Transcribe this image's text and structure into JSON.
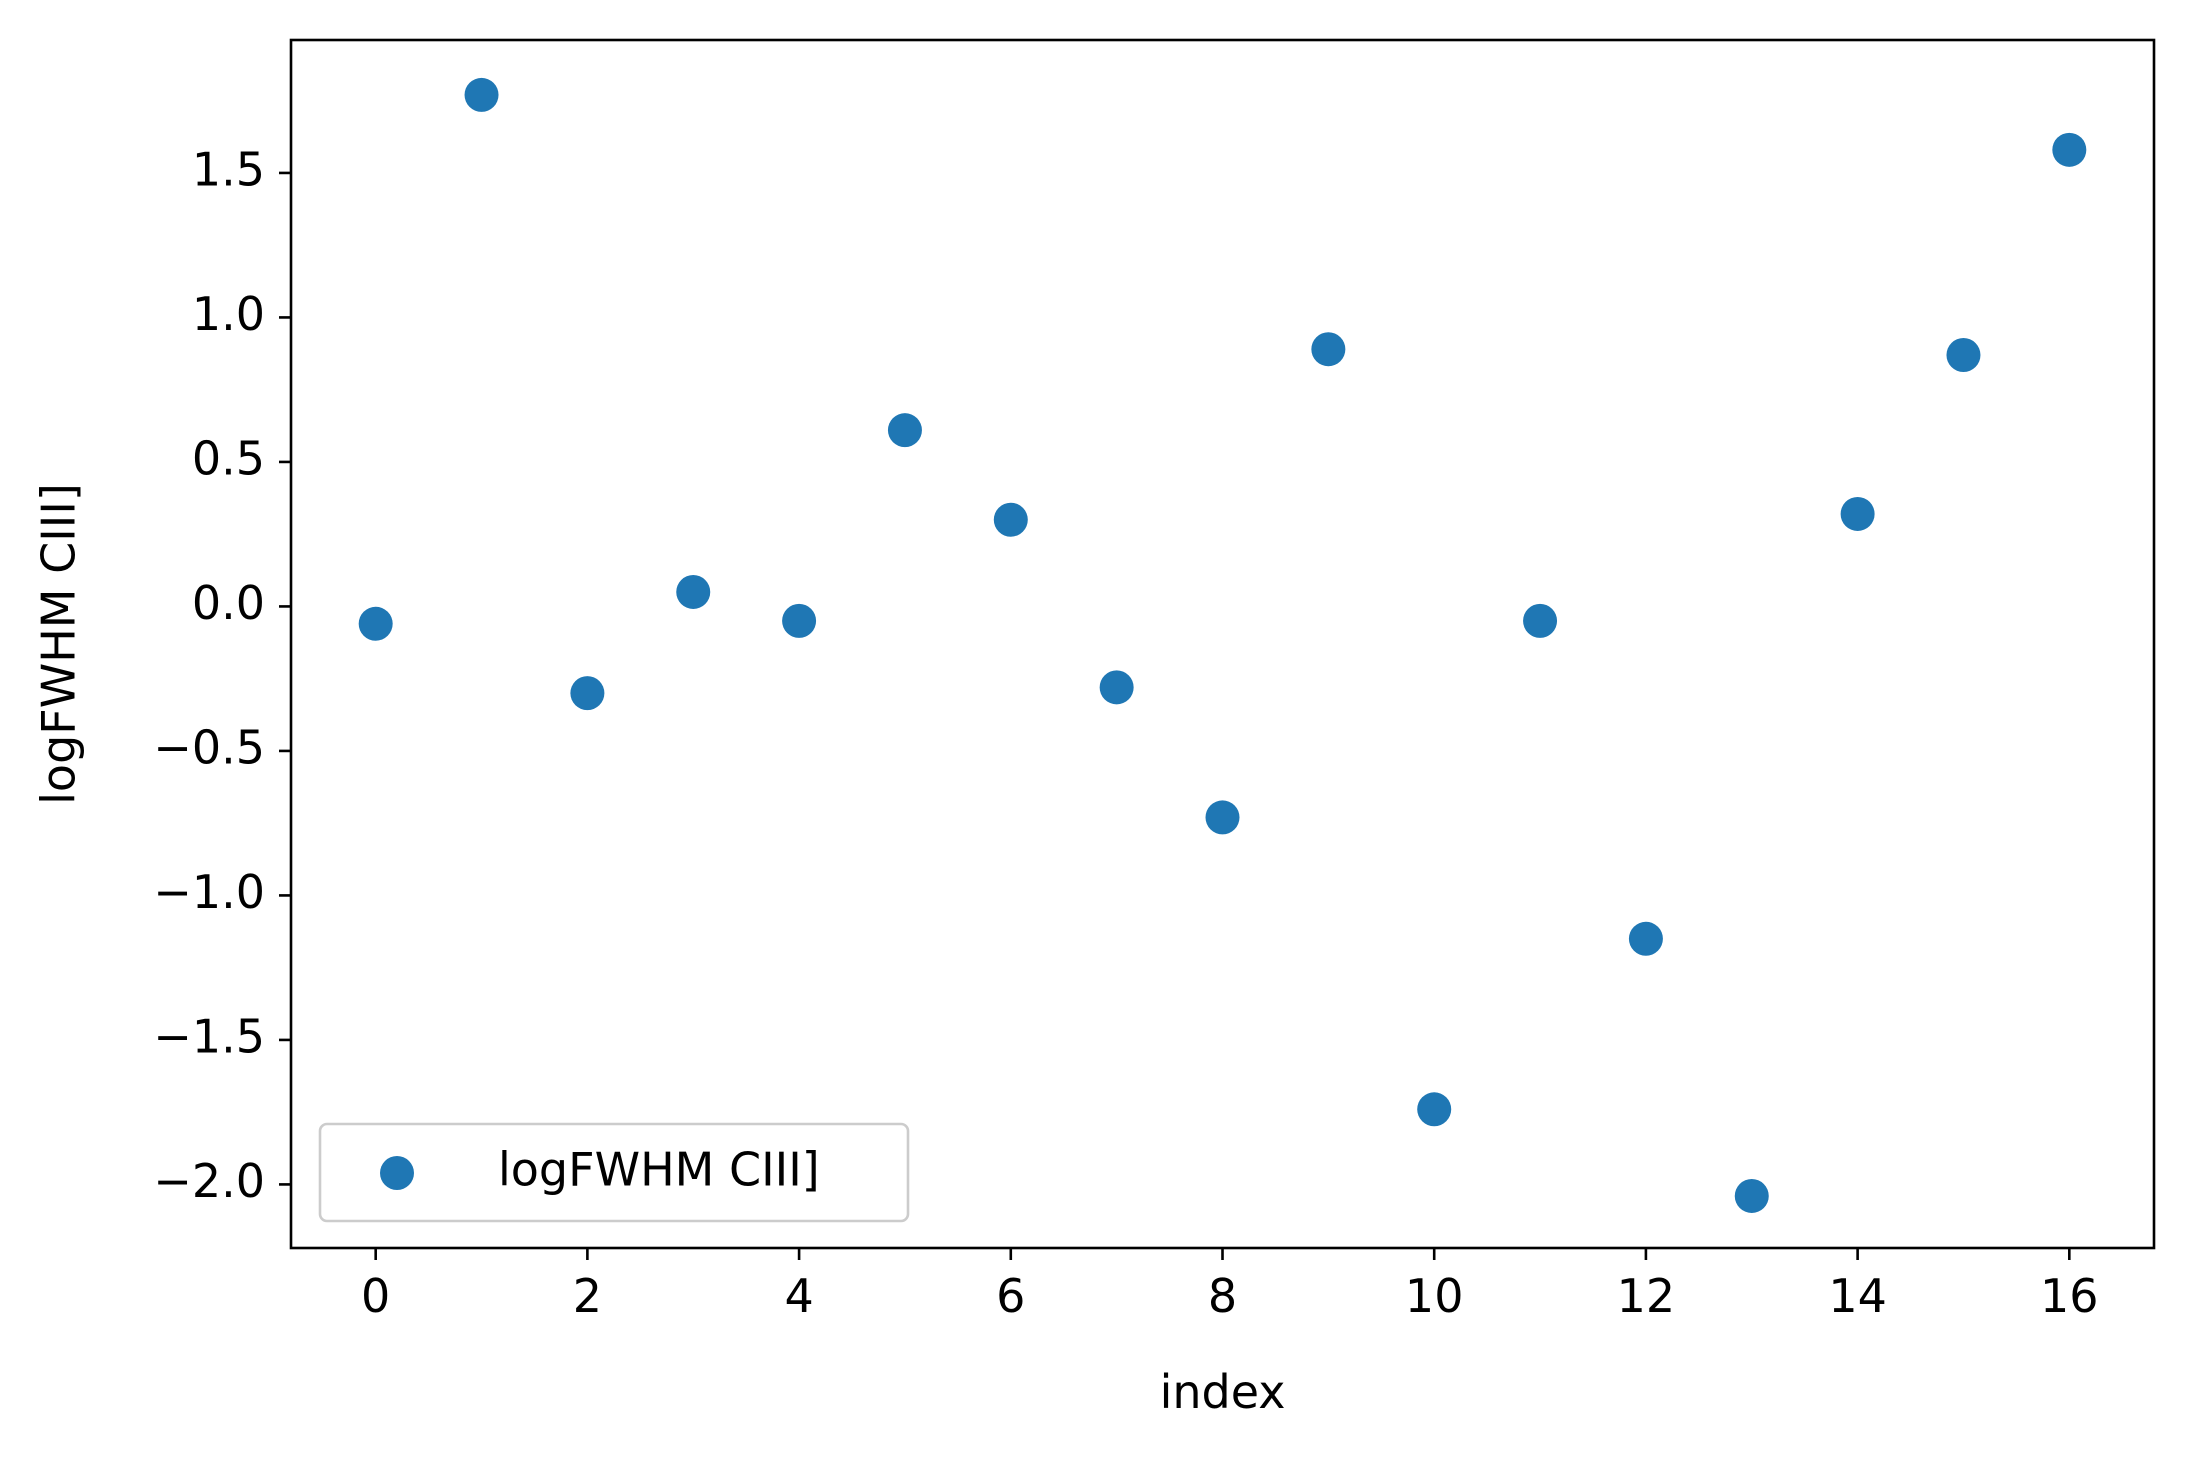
{
  "chart_data": {
    "type": "scatter",
    "title": "",
    "xlabel": "index",
    "ylabel": "logFWHM CIII]",
    "xlim": [
      -0.8,
      16.8
    ],
    "ylim": [
      -2.22,
      1.96
    ],
    "x_ticks": [
      0,
      2,
      4,
      6,
      8,
      10,
      12,
      14,
      16
    ],
    "x_tick_labels": [
      "0",
      "2",
      "4",
      "6",
      "8",
      "10",
      "12",
      "14",
      "16"
    ],
    "y_ticks": [
      -2.0,
      -1.5,
      -1.0,
      -0.5,
      0.0,
      0.5,
      1.0,
      1.5
    ],
    "y_tick_labels": [
      "−2.0",
      "−1.5",
      "−1.0",
      "−0.5",
      "0.0",
      "0.5",
      "1.0",
      "1.5"
    ],
    "grid": false,
    "legend_position": "lower-left",
    "series": [
      {
        "name": "logFWHM CIII]",
        "color": "#1f77b4",
        "marker": "circle",
        "x": [
          0,
          1,
          2,
          3,
          4,
          5,
          6,
          7,
          8,
          9,
          10,
          11,
          12,
          13,
          14,
          15,
          16
        ],
        "y": [
          -0.06,
          1.77,
          -0.3,
          0.05,
          -0.05,
          0.61,
          0.3,
          -0.28,
          -0.73,
          0.89,
          -1.74,
          -0.05,
          -1.15,
          -2.04,
          0.32,
          0.87,
          1.58
        ]
      }
    ]
  }
}
